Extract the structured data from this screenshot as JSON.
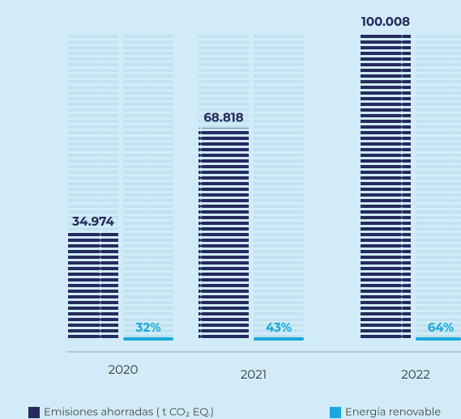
{
  "chart_data": {
    "type": "bar",
    "categories": [
      "2020",
      "2021",
      "2022"
    ],
    "ylim": [
      0,
      100000
    ],
    "series": [
      {
        "name": "Emisiones ahorradas ( t CO₂ EQ.)",
        "color": "#262a5e",
        "values": [
          34974,
          68818,
          100008
        ],
        "value_labels": [
          "34.974",
          "68.818",
          "100.008"
        ]
      },
      {
        "name": "Energía renovable",
        "color": "#1ba9dd",
        "axis": "y2",
        "values": [
          32,
          43,
          64
        ],
        "value_labels": [
          "32%",
          "43%",
          "64%"
        ]
      }
    ]
  }
}
